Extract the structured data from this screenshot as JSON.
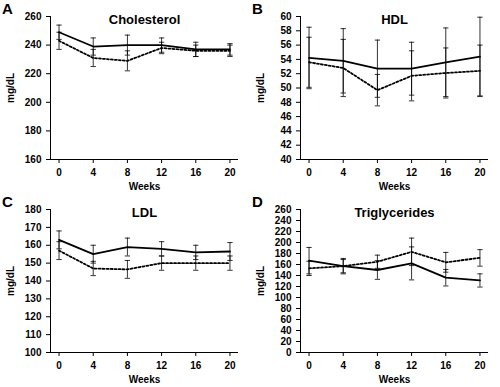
{
  "chart_data": [
    {
      "type": "line",
      "panel": "A",
      "title": "Cholesterol",
      "xlabel": "Weeks",
      "ylabel": "mg/dL",
      "x": [
        0,
        4,
        8,
        12,
        16,
        20
      ],
      "xlim": [
        -1,
        21
      ],
      "xticks": [
        0,
        4,
        8,
        12,
        16,
        20
      ],
      "ylim": [
        160,
        260
      ],
      "yticks": [
        160,
        180,
        200,
        220,
        240,
        260
      ],
      "series": [
        {
          "color": "#000000",
          "line_style": "solid",
          "values": [
            249,
            239,
            240,
            240,
            237,
            237
          ],
          "errors": [
            5,
            6,
            7,
            5,
            5,
            4
          ]
        },
        {
          "color": "#000000",
          "line_style": "dotted",
          "values": [
            243,
            231,
            229,
            238,
            236,
            236
          ],
          "errors": [
            6,
            6,
            7,
            4,
            4,
            4
          ]
        }
      ]
    },
    {
      "type": "line",
      "panel": "B",
      "title": "HDL",
      "xlabel": "Weeks",
      "ylabel": "mg/dL",
      "x": [
        0,
        4,
        8,
        12,
        16,
        20
      ],
      "xlim": [
        -1,
        21
      ],
      "xticks": [
        0,
        4,
        8,
        12,
        16,
        20
      ],
      "ylim": [
        40,
        60
      ],
      "yticks": [
        40,
        42,
        44,
        46,
        48,
        50,
        52,
        54,
        56,
        58,
        60
      ],
      "series": [
        {
          "color": "#000000",
          "line_style": "solid",
          "values": [
            54.2,
            53.8,
            52.7,
            52.7,
            53.6,
            54.4
          ],
          "errors": [
            4.3,
            4.5,
            4,
            3.7,
            4.8,
            5.5
          ]
        },
        {
          "color": "#000000",
          "line_style": "dotted",
          "values": [
            53.6,
            52.8,
            49.7,
            51.7,
            52.1,
            52.4
          ],
          "errors": [
            3.5,
            4,
            2.2,
            3.5,
            3.5,
            3.6
          ]
        }
      ]
    },
    {
      "type": "line",
      "panel": "C",
      "title": "LDL",
      "xlabel": "Weeks",
      "ylabel": "mg/dL",
      "x": [
        0,
        4,
        8,
        12,
        16,
        20
      ],
      "xlim": [
        -1,
        21
      ],
      "xticks": [
        0,
        4,
        8,
        12,
        16,
        20
      ],
      "ylim": [
        100,
        180
      ],
      "yticks": [
        100,
        110,
        120,
        130,
        140,
        150,
        160,
        170,
        180
      ],
      "series": [
        {
          "color": "#000000",
          "line_style": "solid",
          "values": [
            163,
            155,
            159,
            158,
            156,
            156.5
          ],
          "errors": [
            5,
            5,
            5,
            4,
            4,
            5
          ]
        },
        {
          "color": "#000000",
          "line_style": "dotted",
          "values": [
            157,
            147,
            146.5,
            150,
            150,
            150
          ],
          "errors": [
            5,
            4,
            5,
            4,
            4,
            4
          ]
        }
      ]
    },
    {
      "type": "line",
      "panel": "D",
      "title": "Triglycerides",
      "xlabel": "Weeks",
      "ylabel": "mg/dL",
      "x": [
        0,
        4,
        8,
        12,
        16,
        20
      ],
      "xlim": [
        -1,
        21
      ],
      "xticks": [
        0,
        4,
        8,
        12,
        16,
        20
      ],
      "ylim": [
        0,
        260
      ],
      "yticks": [
        0,
        20,
        40,
        60,
        80,
        100,
        120,
        140,
        160,
        180,
        200,
        220,
        240,
        260
      ],
      "series": [
        {
          "color": "#000000",
          "line_style": "solid",
          "values": [
            167,
            157,
            150,
            162,
            136,
            131
          ],
          "errors": [
            24,
            14,
            17,
            30,
            15,
            12
          ]
        },
        {
          "color": "#000000",
          "line_style": "dotted",
          "values": [
            153,
            157,
            165,
            183,
            164,
            172
          ],
          "errors": [
            13,
            12,
            12,
            25,
            18,
            15
          ]
        }
      ]
    }
  ]
}
